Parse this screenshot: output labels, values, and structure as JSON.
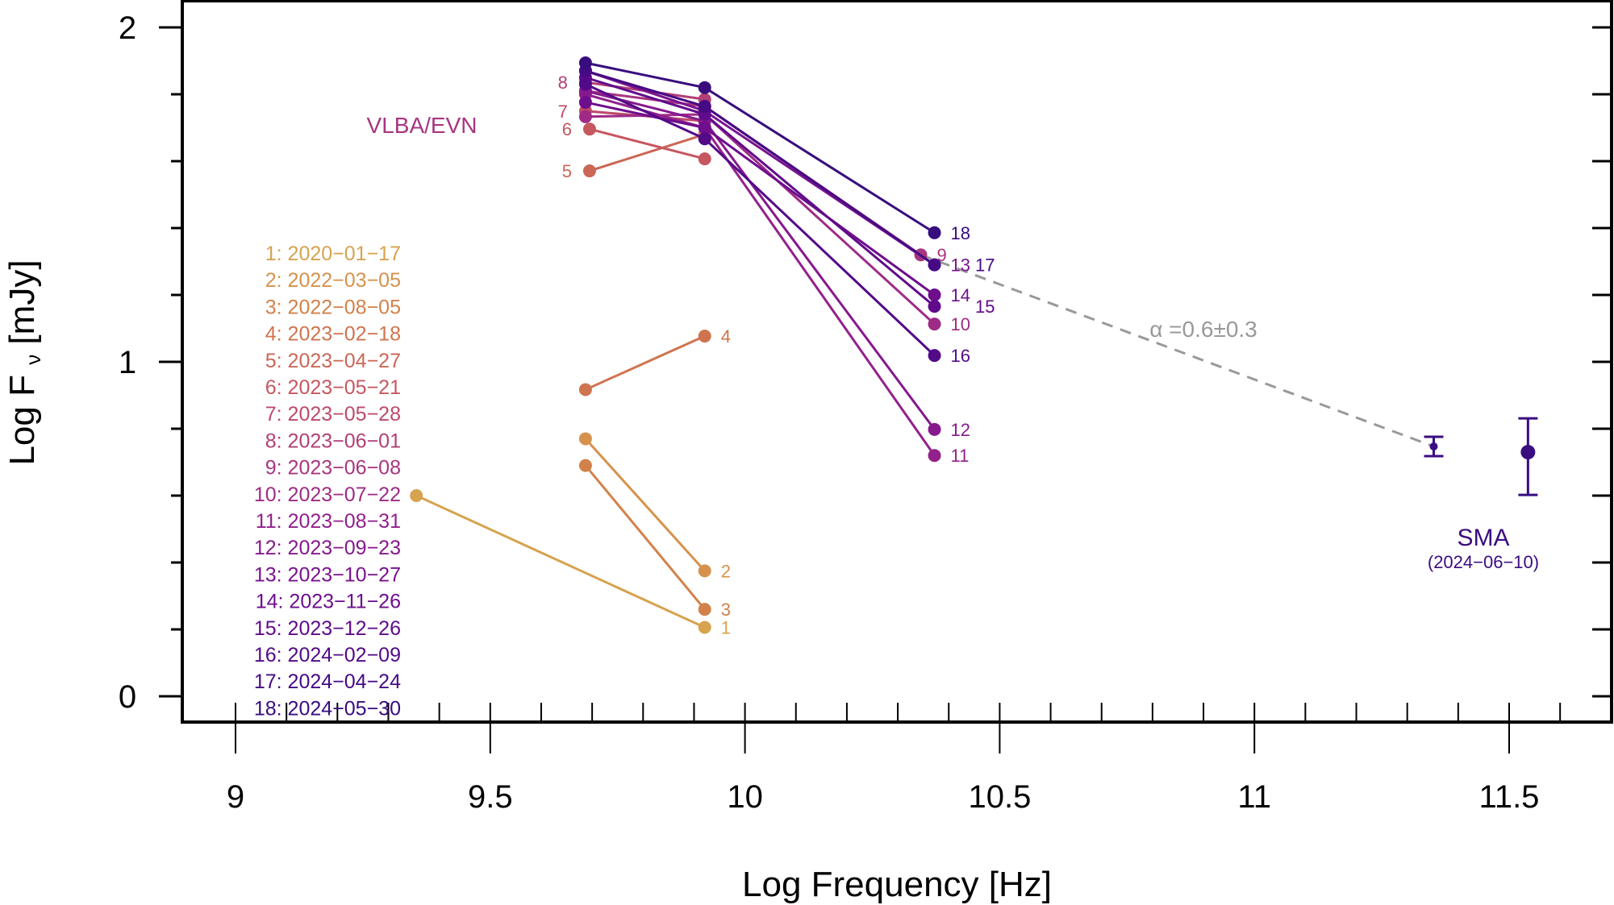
{
  "chart_data": {
    "type": "line",
    "title": "",
    "xlabel": "Log Frequency [Hz]",
    "ylabel_main": "Log F",
    "ylabel_sub": "ν",
    "ylabel_unit": "[mJy]",
    "xlim": [
      8.9,
      11.7
    ],
    "ylim": [
      -0.08,
      2.08
    ],
    "x_ticks": [
      9,
      9.5,
      10,
      10.5,
      11,
      11.5
    ],
    "x_tick_labels": [
      "9",
      "9.5",
      "10",
      "10.5",
      "11",
      "11.5"
    ],
    "y_ticks": [
      0,
      1,
      2
    ],
    "y_tick_labels": [
      "0",
      "1",
      "2"
    ],
    "grid": false,
    "legend_placement": "left",
    "annotations": {
      "vlba_evn": "VLBA/EVN",
      "spectral_index": "α =0.6±0.3",
      "sma": "SMA",
      "sma_date": "(2024−06−10)"
    },
    "fit_line": {
      "x": [
        10.345,
        11.352
      ],
      "y": [
        1.32,
        0.747
      ],
      "color": "#999999",
      "style": "dashed"
    },
    "series": [
      {
        "id": "1",
        "name": "1: 2020−01−17",
        "color": "#d6a34f",
        "x": [
          9.355,
          9.921
        ],
        "y": [
          0.6,
          0.206
        ]
      },
      {
        "id": "2",
        "name": "2: 2022−03−05",
        "color": "#d6924c",
        "x": [
          9.687,
          9.921
        ],
        "y": [
          0.77,
          0.375
        ]
      },
      {
        "id": "3",
        "name": "3: 2022−08−05",
        "color": "#d2814a",
        "x": [
          9.687,
          9.921
        ],
        "y": [
          0.69,
          0.26
        ]
      },
      {
        "id": "4",
        "name": "4: 2023−02−18",
        "color": "#cf744f",
        "x": [
          9.687,
          9.921
        ],
        "y": [
          0.917,
          1.077
        ]
      },
      {
        "id": "5",
        "name": "5: 2023−04−27",
        "color": "#cc6656",
        "x": [
          9.695,
          9.921
        ],
        "y": [
          1.571,
          1.68
        ]
      },
      {
        "id": "6",
        "name": "6: 2023−05−21",
        "color": "#c6575f",
        "x": [
          9.695,
          9.921
        ],
        "y": [
          1.696,
          1.607
        ]
      },
      {
        "id": "7",
        "name": "7: 2023−05−28",
        "color": "#bd4a69",
        "x": [
          9.687,
          9.921
        ],
        "y": [
          1.75,
          1.72
        ]
      },
      {
        "id": "8",
        "name": "8: 2023−06−01",
        "color": "#b23f75",
        "x": [
          9.687,
          9.921
        ],
        "y": [
          1.836,
          1.785
        ]
      },
      {
        "id": "9",
        "name": "9: 2023−06−08",
        "color": "#a8357f",
        "x": [
          9.687,
          9.921,
          10.345
        ],
        "y": [
          1.81,
          1.764,
          1.32
        ]
      },
      {
        "id": "10",
        "name": "10: 2023−07−22",
        "color": "#9e2b86",
        "x": [
          9.687,
          9.921,
          10.372
        ],
        "y": [
          1.733,
          1.74,
          1.113
        ]
      },
      {
        "id": "11",
        "name": "11: 2023−08−31",
        "color": "#92218b",
        "x": [
          9.687,
          9.921,
          10.372
        ],
        "y": [
          1.8,
          1.7,
          0.72
        ]
      },
      {
        "id": "12",
        "name": "12: 2023−09−23",
        "color": "#86198d",
        "x": [
          9.687,
          9.921,
          10.372
        ],
        "y": [
          1.81,
          1.72,
          0.798
        ]
      },
      {
        "id": "13",
        "name": "13: 2023−10−27",
        "color": "#79128e",
        "x": [
          9.687,
          9.921,
          10.372
        ],
        "y": [
          1.87,
          1.75,
          1.29
        ]
      },
      {
        "id": "14",
        "name": "14: 2023−11−26",
        "color": "#6d0e8d",
        "x": [
          9.687,
          9.921,
          10.372
        ],
        "y": [
          1.776,
          1.7,
          1.2
        ]
      },
      {
        "id": "15",
        "name": "15: 2023−12−26",
        "color": "#600b8b",
        "x": [
          9.687,
          9.921,
          10.372
        ],
        "y": [
          1.85,
          1.74,
          1.166
        ]
      },
      {
        "id": "16",
        "name": "16: 2024−02−09",
        "color": "#520a88",
        "x": [
          9.687,
          9.921,
          10.372
        ],
        "y": [
          1.83,
          1.667,
          1.019
        ]
      },
      {
        "id": "17",
        "name": "17: 2024−04−24",
        "color": "#450a84",
        "x": [
          9.687,
          9.921,
          10.372
        ],
        "y": [
          1.87,
          1.764,
          1.29
        ]
      },
      {
        "id": "18",
        "name": "18: 2024−05−30",
        "color": "#380d7e",
        "x": [
          9.687,
          9.921,
          10.372
        ],
        "y": [
          1.894,
          1.82,
          1.386
        ]
      }
    ],
    "sma_points": {
      "color": "#3a0d80",
      "x": [
        11.352,
        11.537
      ],
      "y": [
        0.747,
        0.73
      ],
      "y_err_low": [
        0.718,
        0.602
      ],
      "y_err_high": [
        0.776,
        0.831
      ]
    }
  }
}
